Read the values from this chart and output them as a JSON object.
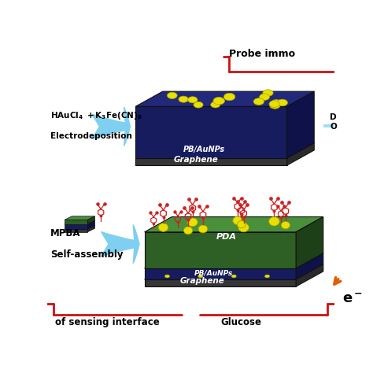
{
  "bg_color": "#ffffff",
  "graphene_color": "#4a4a4a",
  "graphene_color_dark": "#2a2a2a",
  "pb_color": "#1a1e6e",
  "pb_color_dark": "#0d1050",
  "pb_color_darker": "#080a38",
  "pda_color": "#3a7d3a",
  "pda_color_dark": "#2a5a2a",
  "pda_color_darker": "#1a3d1a",
  "aunps_color": "#e8e000",
  "aunps_edge": "#a8a000",
  "pb_aunps_label": "PB/AuNPs",
  "graphene_label": "Graphene",
  "pda_label": "PDA",
  "arrow_color": "#7ecff0",
  "label_reactants_line1": "HAuCl₄ +K₃Fe(CN)₆",
  "label_electrodeposition": "Electrodeposition",
  "label_mpba": "MPBA",
  "label_selfassembly": "Self-assembly",
  "label_probe": "Probe immo",
  "label_sensing": "of sensing interface",
  "label_glucose": "Glucose",
  "red_color": "#cc1111",
  "mol_color": "#cc2222",
  "electron_teal": "#26c6da",
  "electron_orange": "#e65c00"
}
